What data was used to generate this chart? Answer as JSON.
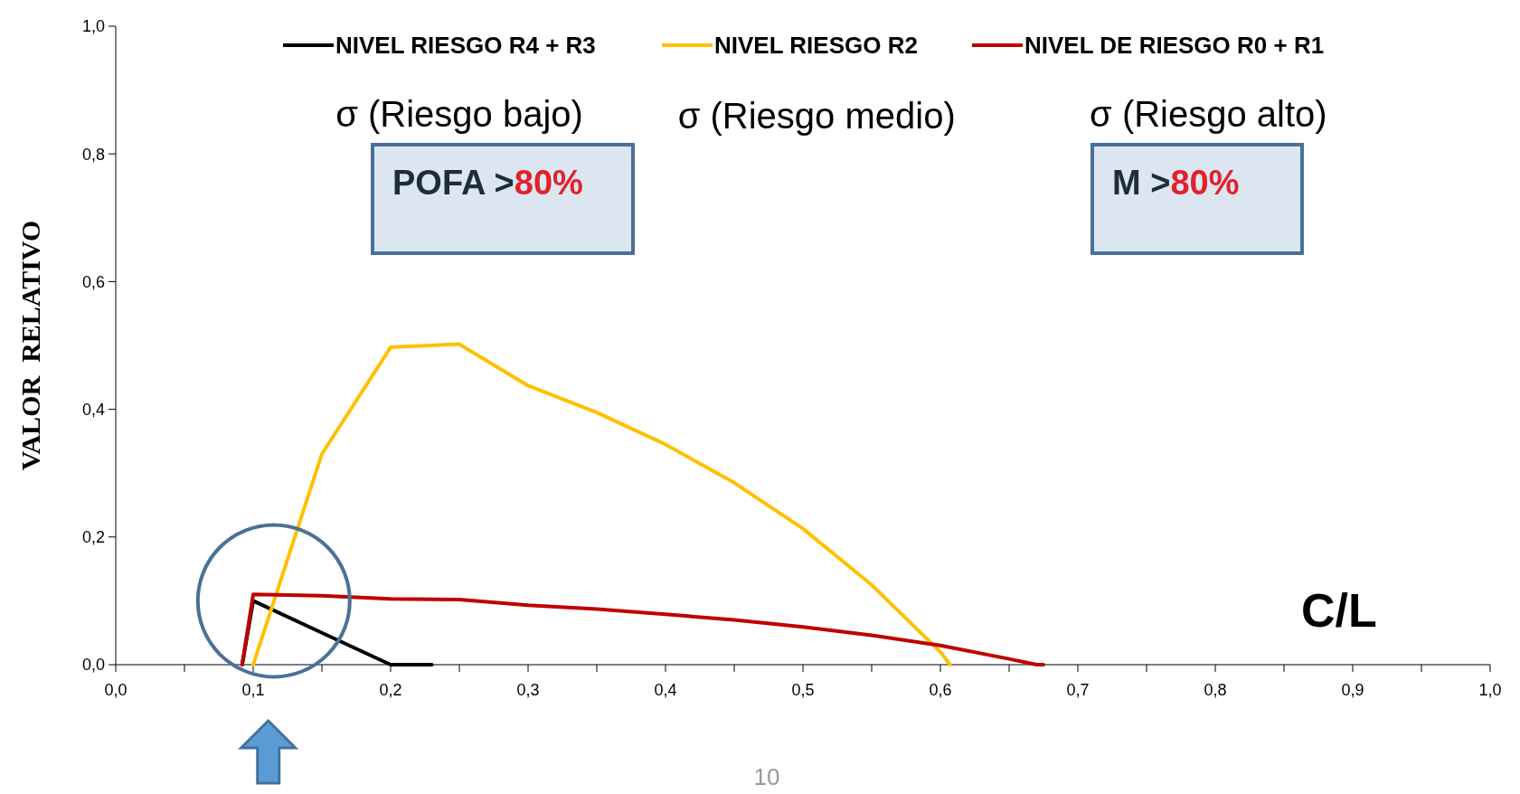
{
  "chart_data": {
    "type": "line",
    "ylabel": "VALOR  RELATIVO",
    "xlabel": "C/L",
    "xlim": [
      0,
      1
    ],
    "ylim": [
      0,
      1
    ],
    "xticks": [
      {
        "value": 0,
        "label": "0,0"
      },
      {
        "value": 0.05,
        "label": null
      },
      {
        "value": 0.1,
        "label": "0,1"
      },
      {
        "value": 0.15,
        "label": null
      },
      {
        "value": 0.2,
        "label": "0,2"
      },
      {
        "value": 0.25,
        "label": null
      },
      {
        "value": 0.3,
        "label": "0,3"
      },
      {
        "value": 0.35,
        "label": null
      },
      {
        "value": 0.4,
        "label": "0,4"
      },
      {
        "value": 0.45,
        "label": null
      },
      {
        "value": 0.5,
        "label": "0,5"
      },
      {
        "value": 0.55,
        "label": null
      },
      {
        "value": 0.6,
        "label": "0,6"
      },
      {
        "value": 0.65,
        "label": null
      },
      {
        "value": 0.7,
        "label": "0,7"
      },
      {
        "value": 0.75,
        "label": null
      },
      {
        "value": 0.8,
        "label": "0,8"
      },
      {
        "value": 0.85,
        "label": null
      },
      {
        "value": 0.9,
        "label": "0,9"
      },
      {
        "value": 0.95,
        "label": null
      },
      {
        "value": 1,
        "label": "1,0"
      }
    ],
    "yticks": [
      {
        "value": 0,
        "label": "0,0"
      },
      {
        "value": 0.2,
        "label": "0,2"
      },
      {
        "value": 0.4,
        "label": "0,4"
      },
      {
        "value": 0.6,
        "label": "0,6"
      },
      {
        "value": 0.8,
        "label": "0,8"
      },
      {
        "value": 1,
        "label": "1,0"
      }
    ],
    "grid": false,
    "legend": "top",
    "line_style": "solid",
    "series": [
      {
        "name": "NIVEL RIESGO R4 + R3",
        "color": "#000000",
        "x": [
          0.092,
          0.1,
          0.15,
          0.2,
          0.23
        ],
        "values": [
          0,
          0.1,
          0.05,
          0,
          0
        ]
      },
      {
        "name": "NIVEL RIESGO R2",
        "color": "#ffc000",
        "x": [
          0.1,
          0.15,
          0.2,
          0.25,
          0.3,
          0.35,
          0.4,
          0.45,
          0.5,
          0.55,
          0.6,
          0.607
        ],
        "values": [
          0,
          0.33,
          0.497,
          0.502,
          0.437,
          0.395,
          0.345,
          0.285,
          0.213,
          0.125,
          0.02,
          0
        ]
      },
      {
        "name": "NIVEL DE RIESGO R0 + R1",
        "color": "#c00000",
        "x": [
          0.092,
          0.1,
          0.15,
          0.2,
          0.25,
          0.3,
          0.35,
          0.4,
          0.45,
          0.5,
          0.55,
          0.6,
          0.65,
          0.67,
          0.675
        ],
        "values": [
          0,
          0.11,
          0.108,
          0.103,
          0.102,
          0.093,
          0.087,
          0.079,
          0.07,
          0.059,
          0.046,
          0.03,
          0.009,
          0,
          0
        ]
      }
    ],
    "annotations": [
      "σ (Riesgo bajo)",
      "σ (Riesgo medio)",
      "σ (Riesgo alto)",
      "POFA >80%",
      "M >80%",
      "10"
    ]
  }
}
